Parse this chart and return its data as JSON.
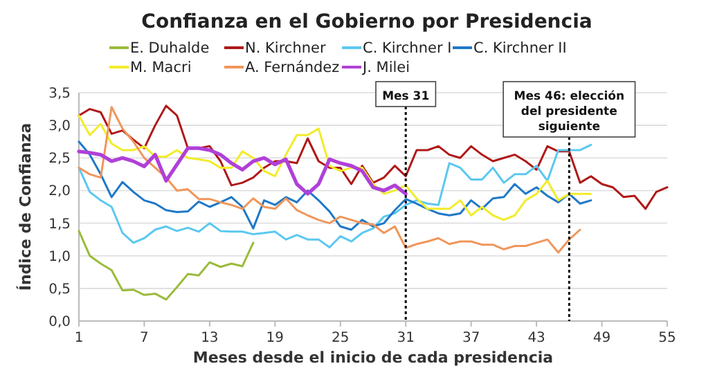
{
  "chart_data": {
    "type": "line",
    "title": "Confianza en el Gobierno por Presidencia",
    "xlabel": "Meses desde el inicio de cada presidencia",
    "ylabel": "Índice de Confianza",
    "x": [
      1,
      2,
      3,
      4,
      5,
      6,
      7,
      8,
      9,
      10,
      11,
      12,
      13,
      14,
      15,
      16,
      17,
      18,
      19,
      20,
      21,
      22,
      23,
      24,
      25,
      26,
      27,
      28,
      29,
      30,
      31,
      32,
      33,
      34,
      35,
      36,
      37,
      38,
      39,
      40,
      41,
      42,
      43,
      44,
      45,
      46,
      47,
      48,
      49,
      50,
      51,
      52,
      53,
      54,
      55
    ],
    "xlim": [
      1,
      55
    ],
    "xticks": [
      1,
      7,
      13,
      19,
      25,
      31,
      37,
      43,
      49,
      55
    ],
    "ylim": [
      0,
      3.5
    ],
    "yticks": [
      {
        "value": 0,
        "label": "0,0"
      },
      {
        "value": 0.5,
        "label": "0,5"
      },
      {
        "value": 1,
        "label": "1,0"
      },
      {
        "value": 1.5,
        "label": "1,5"
      },
      {
        "value": 2,
        "label": "2,0"
      },
      {
        "value": 2.5,
        "label": "2,5"
      },
      {
        "value": 3,
        "label": "3,0"
      },
      {
        "value": 3.5,
        "label": "3,5"
      }
    ],
    "grid": "y",
    "legend": "top",
    "line_style": "solid",
    "ref_lines": [
      {
        "axis": "x",
        "value": 31,
        "label": "Mes 31",
        "line_style": "dotted",
        "color": "#000000"
      },
      {
        "axis": "x",
        "value": 46,
        "label": "Mes 46: elección del presidente siguiente",
        "line_style": "dotted",
        "color": "#000000"
      }
    ],
    "series": [
      {
        "name": "E. Duhalde",
        "color": "#9bbb3b",
        "values": [
          1.38,
          1.0,
          0.88,
          0.78,
          0.47,
          0.48,
          0.4,
          0.42,
          0.33,
          0.52,
          0.72,
          0.7,
          0.9,
          0.83,
          0.88,
          0.84,
          1.2,
          null,
          null,
          null,
          null,
          null,
          null,
          null,
          null,
          null,
          null,
          null,
          null,
          null,
          null,
          null,
          null,
          null,
          null,
          null,
          null,
          null,
          null,
          null,
          null,
          null,
          null,
          null,
          null,
          null,
          null,
          null,
          null,
          null,
          null,
          null,
          null,
          null,
          null
        ]
      },
      {
        "name": "N. Kirchner",
        "color": "#b01818",
        "values": [
          3.15,
          3.25,
          3.2,
          2.87,
          2.92,
          2.78,
          2.65,
          3.0,
          3.3,
          3.15,
          2.65,
          2.65,
          2.68,
          2.45,
          2.08,
          2.12,
          2.2,
          2.35,
          2.45,
          2.45,
          2.42,
          2.8,
          2.45,
          2.35,
          2.35,
          2.1,
          2.38,
          2.12,
          2.2,
          2.38,
          2.22,
          2.62,
          2.62,
          2.68,
          2.55,
          2.5,
          2.68,
          2.55,
          2.45,
          2.5,
          2.55,
          2.45,
          2.32,
          2.68,
          2.6,
          2.6,
          2.12,
          2.22,
          2.1,
          2.05,
          1.9,
          1.92,
          1.72,
          1.98,
          2.05
        ]
      },
      {
        "name": "C. Kirchner I",
        "color": "#5bc8f0",
        "values": [
          2.35,
          1.98,
          1.85,
          1.75,
          1.35,
          1.2,
          1.27,
          1.4,
          1.45,
          1.38,
          1.43,
          1.37,
          1.5,
          1.38,
          1.37,
          1.37,
          1.33,
          1.35,
          1.37,
          1.25,
          1.32,
          1.25,
          1.25,
          1.13,
          1.3,
          1.22,
          1.35,
          1.42,
          1.6,
          1.65,
          1.78,
          1.85,
          1.8,
          1.78,
          2.42,
          2.35,
          2.17,
          2.17,
          2.35,
          2.12,
          2.25,
          2.25,
          2.38,
          2.15,
          2.62,
          2.62,
          2.62,
          2.7,
          null,
          null,
          null,
          null,
          null,
          null,
          null
        ]
      },
      {
        "name": "C. Kirchner II",
        "color": "#1f78c8",
        "values": [
          2.75,
          2.55,
          2.25,
          1.9,
          2.13,
          1.98,
          1.85,
          1.8,
          1.7,
          1.67,
          1.68,
          1.83,
          1.75,
          1.82,
          1.9,
          1.75,
          1.42,
          1.85,
          1.78,
          1.9,
          1.82,
          2.0,
          1.85,
          1.68,
          1.45,
          1.4,
          1.55,
          1.45,
          1.5,
          1.7,
          1.87,
          1.8,
          1.72,
          1.65,
          1.62,
          1.65,
          1.85,
          1.72,
          1.88,
          1.9,
          2.1,
          1.95,
          2.05,
          1.92,
          1.82,
          1.95,
          1.8,
          1.85,
          null,
          null,
          null,
          null,
          null,
          null,
          null
        ]
      },
      {
        "name": "M. Macri",
        "color": "#f2ec2a",
        "values": [
          3.15,
          2.85,
          3.02,
          2.72,
          2.62,
          2.62,
          2.68,
          2.52,
          2.52,
          2.62,
          2.5,
          2.48,
          2.45,
          2.35,
          2.35,
          2.6,
          2.5,
          2.3,
          2.22,
          2.55,
          2.85,
          2.85,
          2.95,
          2.38,
          2.3,
          2.35,
          2.35,
          2.1,
          1.95,
          2.0,
          2.08,
          1.88,
          1.72,
          1.72,
          1.72,
          1.85,
          1.62,
          1.75,
          1.62,
          1.55,
          1.62,
          1.85,
          1.95,
          2.15,
          1.85,
          1.95,
          1.95,
          1.95,
          null,
          null,
          null,
          null,
          null,
          null,
          null
        ]
      },
      {
        "name": "A. Fernández",
        "color": "#f0965a",
        "values": [
          2.35,
          2.25,
          2.2,
          3.28,
          2.95,
          2.75,
          2.5,
          2.35,
          2.2,
          2.0,
          2.02,
          1.87,
          1.87,
          1.82,
          1.78,
          1.72,
          1.88,
          1.75,
          1.72,
          1.88,
          1.7,
          1.62,
          1.55,
          1.5,
          1.6,
          1.55,
          1.5,
          1.48,
          1.35,
          1.45,
          1.12,
          1.18,
          1.22,
          1.27,
          1.18,
          1.22,
          1.22,
          1.17,
          1.17,
          1.1,
          1.15,
          1.15,
          1.2,
          1.25,
          1.05,
          1.25,
          1.4,
          null,
          null,
          null,
          null,
          null,
          null,
          null,
          null
        ]
      },
      {
        "name": "J. Milei",
        "color": "#b040d8",
        "values": [
          2.6,
          2.58,
          2.55,
          2.45,
          2.5,
          2.45,
          2.37,
          2.55,
          2.15,
          2.4,
          2.65,
          2.65,
          2.62,
          2.55,
          2.42,
          2.32,
          2.45,
          2.5,
          2.4,
          2.48,
          2.1,
          1.95,
          2.1,
          2.48,
          2.42,
          2.38,
          2.3,
          2.05,
          2.0,
          2.08,
          1.95,
          null,
          null,
          null,
          null,
          null,
          null,
          null,
          null,
          null,
          null,
          null,
          null,
          null,
          null,
          null,
          null,
          null,
          null,
          null,
          null,
          null,
          null,
          null,
          null
        ]
      }
    ]
  }
}
